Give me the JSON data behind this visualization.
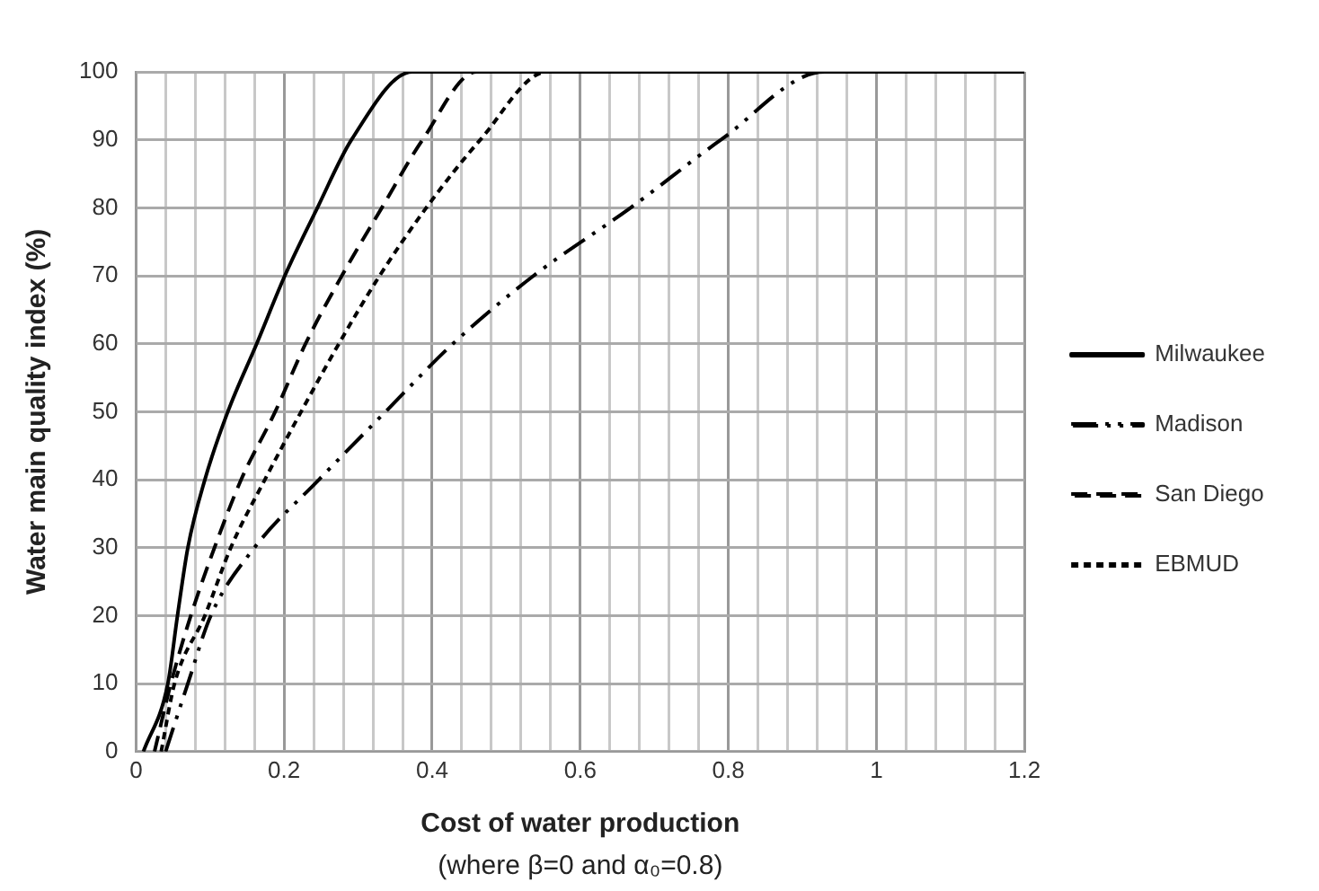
{
  "chart_data": {
    "type": "line",
    "xlabel": "Cost of water production",
    "ylabel": "Water main quality index (%)",
    "annotations": [
      "(where β=0 and α₀=0.8)"
    ],
    "xlim": [
      0,
      1.2
    ],
    "xticks": [
      0,
      {
        "value": 0.04,
        "label": null
      },
      {
        "value": 0.08,
        "label": null
      },
      {
        "value": 0.12,
        "label": null
      },
      {
        "value": 0.16,
        "label": null
      },
      {
        "value": 0.2,
        "label": "0.2"
      },
      {
        "value": 0.24,
        "label": null
      },
      {
        "value": 0.28,
        "label": null
      },
      {
        "value": 0.32,
        "label": null
      },
      {
        "value": 0.36,
        "label": null
      },
      {
        "value": 0.4,
        "label": "0.4"
      },
      {
        "value": 0.44,
        "label": null
      },
      {
        "value": 0.48,
        "label": null
      },
      {
        "value": 0.52,
        "label": null
      },
      {
        "value": 0.56,
        "label": null
      },
      {
        "value": 0.6,
        "label": "0.6"
      },
      {
        "value": 0.64,
        "label": null
      },
      {
        "value": 0.68,
        "label": null
      },
      {
        "value": 0.72,
        "label": null
      },
      {
        "value": 0.76,
        "label": null
      },
      {
        "value": 0.8,
        "label": "0.8"
      },
      {
        "value": 0.84,
        "label": null
      },
      {
        "value": 0.88,
        "label": null
      },
      {
        "value": 0.92,
        "label": null
      },
      {
        "value": 0.96,
        "label": null
      },
      1,
      {
        "value": 1.04,
        "label": null
      },
      {
        "value": 1.08,
        "label": null
      },
      {
        "value": 1.12,
        "label": null
      },
      {
        "value": 1.16,
        "label": null
      },
      1.2
    ],
    "ylim": [
      0,
      100
    ],
    "yticks": [
      0,
      10,
      20,
      30,
      40,
      50,
      60,
      70,
      80,
      90,
      100
    ],
    "grid": true,
    "legend": "right",
    "marker": "none",
    "series": [
      {
        "name": "Milwaukee",
        "color": "#000000",
        "line_style": "solid",
        "x": [
          0.01,
          0.043,
          0.056,
          0.07,
          0.093,
          0.124,
          0.163,
          0.201,
          0.245,
          0.291,
          0.373,
          1.2
        ],
        "values": [
          0,
          10,
          20,
          30,
          40,
          50,
          60,
          70,
          80,
          90,
          100,
          100
        ]
      },
      {
        "name": "Madison",
        "color": "#000000",
        "line_style": "dashdot",
        "x": [
          0.04,
          0.07,
          0.101,
          0.16,
          0.247,
          0.337,
          0.428,
          0.537,
          0.668,
          0.79,
          0.93,
          1.2
        ],
        "values": [
          0,
          10,
          20,
          30,
          40,
          50,
          60,
          70,
          80,
          90,
          100,
          100
        ]
      },
      {
        "name": "San Diego",
        "color": "#000000",
        "line_style": "dashed",
        "x": [
          0.025,
          0.047,
          0.074,
          0.106,
          0.142,
          0.188,
          0.229,
          0.278,
          0.332,
          0.387,
          0.46,
          1.2
        ],
        "values": [
          0,
          10,
          20,
          30,
          40,
          50,
          60,
          70,
          80,
          90,
          100,
          100
        ]
      },
      {
        "name": "EBMUD",
        "color": "#000000",
        "line_style": "dotted",
        "x": [
          0.034,
          0.052,
          0.093,
          0.128,
          0.174,
          0.223,
          0.274,
          0.329,
          0.392,
          0.465,
          0.555,
          1.2
        ],
        "values": [
          0,
          10,
          20,
          30,
          40,
          50,
          60,
          70,
          80,
          90,
          100,
          100
        ]
      }
    ]
  }
}
